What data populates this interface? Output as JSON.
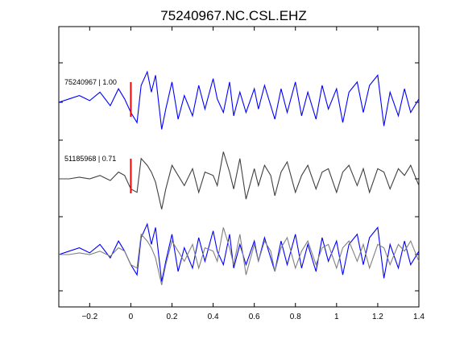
{
  "chart_data": {
    "type": "line",
    "title": "75240967.NC.CSL.EHZ",
    "xlabel": "",
    "ylabel": "",
    "xlim": [
      -0.35,
      1.4
    ],
    "xticks": [
      -0.2,
      0,
      0.2,
      0.4,
      0.6,
      0.8,
      1,
      1.2,
      1.4
    ],
    "xtick_labels": [
      "−0.2",
      "0",
      "0.2",
      "0.4",
      "0.6",
      "0.8",
      "1",
      "1.2",
      "1.4"
    ],
    "grid": false,
    "pick_time": 0,
    "colors": {
      "blue": "#0000ff",
      "gray": "#404040",
      "gray_light": "#808080",
      "pick": "#ff0000"
    },
    "traces": [
      {
        "label": "75240967 | 1.00",
        "color": "blue",
        "baseline": 0,
        "pick": true,
        "t": [
          -0.35,
          -0.3,
          -0.25,
          -0.2,
          -0.15,
          -0.1,
          -0.06,
          -0.03,
          0,
          0.03,
          0.05,
          0.08,
          0.1,
          0.12,
          0.15,
          0.17,
          0.2,
          0.23,
          0.26,
          0.3,
          0.33,
          0.36,
          0.4,
          0.42,
          0.45,
          0.48,
          0.5,
          0.53,
          0.56,
          0.6,
          0.62,
          0.65,
          0.68,
          0.7,
          0.73,
          0.76,
          0.8,
          0.83,
          0.86,
          0.9,
          0.93,
          0.96,
          1.0,
          1.03,
          1.06,
          1.1,
          1.13,
          1.16,
          1.2,
          1.23,
          1.26,
          1.3,
          1.33,
          1.36,
          1.4
        ],
        "v": [
          0,
          0.1,
          0.2,
          0.05,
          0.3,
          -0.1,
          0.4,
          0.1,
          -0.3,
          -0.6,
          0.5,
          0.9,
          0.3,
          0.8,
          -0.8,
          -0.2,
          0.6,
          -0.5,
          0.2,
          -0.4,
          0.5,
          -0.2,
          0.7,
          0.1,
          -0.3,
          0.6,
          -0.4,
          0.3,
          -0.3,
          0.4,
          -0.2,
          0.5,
          -0.1,
          -0.5,
          0.4,
          -0.3,
          0.6,
          -0.4,
          0.3,
          -0.5,
          0.5,
          -0.2,
          0.4,
          -0.6,
          0.3,
          0.6,
          -0.3,
          0.5,
          0.8,
          -0.7,
          0.3,
          -0.4,
          0.4,
          -0.3,
          0.1
        ]
      },
      {
        "label": "51185968 | 0.71",
        "color": "gray",
        "baseline": 0,
        "pick": true,
        "t": [
          -0.35,
          -0.3,
          -0.25,
          -0.2,
          -0.15,
          -0.1,
          -0.06,
          -0.03,
          0,
          0.03,
          0.05,
          0.08,
          0.1,
          0.12,
          0.15,
          0.17,
          0.2,
          0.23,
          0.26,
          0.3,
          0.33,
          0.36,
          0.4,
          0.42,
          0.45,
          0.48,
          0.5,
          0.53,
          0.56,
          0.6,
          0.62,
          0.65,
          0.68,
          0.7,
          0.73,
          0.76,
          0.8,
          0.83,
          0.86,
          0.9,
          0.93,
          0.96,
          1.0,
          1.03,
          1.06,
          1.1,
          1.13,
          1.16,
          1.2,
          1.23,
          1.26,
          1.3,
          1.33,
          1.36,
          1.4
        ],
        "v": [
          0,
          0,
          0.05,
          0,
          0.1,
          -0.05,
          0.2,
          0.1,
          -0.3,
          -0.4,
          0.6,
          0.4,
          0.2,
          -0.1,
          -0.9,
          -0.3,
          0.4,
          0.1,
          -0.2,
          0.3,
          -0.4,
          0.2,
          0.1,
          -0.2,
          0.8,
          0.2,
          -0.3,
          0.6,
          -0.6,
          0.3,
          -0.2,
          0.4,
          0.1,
          -0.5,
          0.2,
          0.5,
          -0.4,
          0.1,
          0.4,
          -0.3,
          0.2,
          0.3,
          -0.4,
          0.2,
          0.4,
          -0.2,
          0.3,
          -0.4,
          0.3,
          0.2,
          -0.3,
          0.3,
          0.1,
          0.4,
          -0.2
        ]
      },
      {
        "label": "",
        "color": "blue",
        "baseline": 0,
        "pick": false,
        "t": [
          -0.35,
          -0.3,
          -0.25,
          -0.2,
          -0.15,
          -0.1,
          -0.06,
          -0.03,
          0,
          0.03,
          0.05,
          0.08,
          0.1,
          0.12,
          0.15,
          0.17,
          0.2,
          0.23,
          0.26,
          0.3,
          0.33,
          0.36,
          0.4,
          0.42,
          0.45,
          0.48,
          0.5,
          0.53,
          0.56,
          0.6,
          0.62,
          0.65,
          0.68,
          0.7,
          0.73,
          0.76,
          0.8,
          0.83,
          0.86,
          0.9,
          0.93,
          0.96,
          1.0,
          1.03,
          1.06,
          1.1,
          1.13,
          1.16,
          1.2,
          1.23,
          1.26,
          1.3,
          1.33,
          1.36,
          1.4
        ],
        "v": [
          0,
          0.1,
          0.2,
          0.05,
          0.3,
          -0.1,
          0.4,
          0.1,
          -0.3,
          -0.6,
          0.5,
          0.9,
          0.3,
          0.8,
          -0.8,
          -0.2,
          0.6,
          -0.5,
          0.2,
          -0.4,
          0.5,
          -0.2,
          0.7,
          0.1,
          -0.3,
          0.6,
          -0.4,
          0.3,
          -0.3,
          0.4,
          -0.2,
          0.5,
          -0.1,
          -0.5,
          0.4,
          -0.3,
          0.6,
          -0.4,
          0.3,
          -0.5,
          0.5,
          -0.2,
          0.4,
          -0.6,
          0.3,
          0.6,
          -0.3,
          0.5,
          0.8,
          -0.7,
          0.3,
          -0.4,
          0.4,
          -0.3,
          0.1
        ]
      },
      {
        "label": "",
        "color": "gray_light",
        "baseline": 0,
        "pick": false,
        "t": [
          -0.35,
          -0.3,
          -0.25,
          -0.2,
          -0.15,
          -0.1,
          -0.06,
          -0.03,
          0,
          0.03,
          0.05,
          0.08,
          0.1,
          0.12,
          0.15,
          0.17,
          0.2,
          0.23,
          0.26,
          0.3,
          0.33,
          0.36,
          0.4,
          0.42,
          0.45,
          0.48,
          0.5,
          0.53,
          0.56,
          0.6,
          0.62,
          0.65,
          0.68,
          0.7,
          0.73,
          0.76,
          0.8,
          0.83,
          0.86,
          0.9,
          0.93,
          0.96,
          1.0,
          1.03,
          1.06,
          1.1,
          1.13,
          1.16,
          1.2,
          1.23,
          1.26,
          1.3,
          1.33,
          1.36,
          1.4
        ],
        "v": [
          0,
          0,
          0.05,
          0,
          0.1,
          -0.05,
          0.2,
          0.1,
          -0.3,
          -0.4,
          0.6,
          0.4,
          0.2,
          -0.1,
          -0.9,
          -0.3,
          0.4,
          0.1,
          -0.2,
          0.3,
          -0.4,
          0.2,
          0.1,
          -0.2,
          0.8,
          0.2,
          -0.3,
          0.6,
          -0.6,
          0.3,
          -0.2,
          0.4,
          0.1,
          -0.5,
          0.2,
          0.5,
          -0.4,
          0.1,
          0.4,
          -0.3,
          0.2,
          0.3,
          -0.4,
          0.2,
          0.4,
          -0.2,
          0.3,
          -0.4,
          0.3,
          0.2,
          -0.3,
          0.3,
          0.1,
          0.4,
          -0.2
        ]
      }
    ]
  }
}
